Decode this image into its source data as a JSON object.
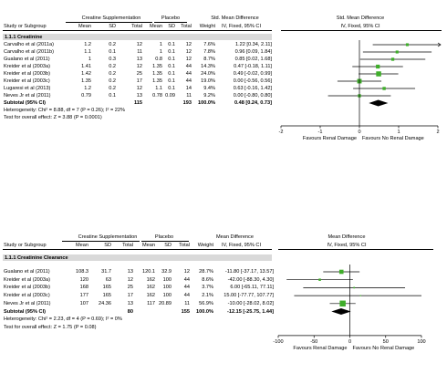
{
  "chart_data": [
    {
      "type": "forest",
      "section": "1.1.1 Creatinine",
      "headers": {
        "group1": "Creatine Supplementation",
        "group2": "Placebo",
        "effect": "Std. Mean Difference",
        "effect_sub": "IV, Fixed, 95% CI",
        "plot": "Std. Mean Difference",
        "plot_sub": "IV, Fixed, 95% CI",
        "study": "Study or Subgroup",
        "mean": "Mean",
        "sd": "SD",
        "total": "Total",
        "weight": "Weight"
      },
      "rows": [
        {
          "study": "Carvalho et al (2011a)",
          "m1": "1.2",
          "sd1": "0.2",
          "n1": "12",
          "m2": "1",
          "sd2": "0.1",
          "n2": "12",
          "weight": "7.6%",
          "ci_text": "1.22 [0.34, 2.11]",
          "est": 1.22,
          "lo": 0.34,
          "hi": 2.11,
          "arrow": true
        },
        {
          "study": "Carvalho et al (2011b)",
          "m1": "1.1",
          "sd1": "0.1",
          "n1": "11",
          "m2": "1",
          "sd2": "0.1",
          "n2": "12",
          "weight": "7.8%",
          "ci_text": "0.96 [0.09, 1.84]",
          "est": 0.96,
          "lo": 0.09,
          "hi": 1.84
        },
        {
          "study": "Gualano et al (2011)",
          "m1": "1",
          "sd1": "0.3",
          "n1": "13",
          "m2": "0.8",
          "sd2": "0.1",
          "n2": "12",
          "weight": "8.7%",
          "ci_text": "0.85 [0.02, 1.68]",
          "est": 0.85,
          "lo": 0.02,
          "hi": 1.68
        },
        {
          "study": "Kreider et al (2003a)",
          "m1": "1.41",
          "sd1": "0.2",
          "n1": "12",
          "m2": "1.35",
          "sd2": "0.1",
          "n2": "44",
          "weight": "14.3%",
          "ci_text": "0.47 [-0.18, 1.11]",
          "est": 0.47,
          "lo": -0.18,
          "hi": 1.11
        },
        {
          "study": "Kreider et al (2003b)",
          "m1": "1.42",
          "sd1": "0.2",
          "n1": "25",
          "m2": "1.35",
          "sd2": "0.1",
          "n2": "44",
          "weight": "24.0%",
          "ci_text": "0.49 [-0.02, 0.99]",
          "est": 0.49,
          "lo": -0.02,
          "hi": 0.99
        },
        {
          "study": "Kreider et al (2003c)",
          "m1": "1.35",
          "sd1": "0.2",
          "n1": "17",
          "m2": "1.35",
          "sd2": "0.1",
          "n2": "44",
          "weight": "19.0%",
          "ci_text": "0.00 [-0.56, 0.56]",
          "est": 0.0,
          "lo": -0.56,
          "hi": 0.56
        },
        {
          "study": "Lugaresi et al (2013)",
          "m1": "1.2",
          "sd1": "0.2",
          "n1": "12",
          "m2": "1.1",
          "sd2": "0.1",
          "n2": "14",
          "weight": "9.4%",
          "ci_text": "0.63 [-0.16, 1.42]",
          "est": 0.63,
          "lo": -0.16,
          "hi": 1.42
        },
        {
          "study": "Neves Jr et al (2011)",
          "m1": "0.79",
          "sd1": "0.1",
          "n1": "13",
          "m2": "0.78",
          "sd2": "0.09",
          "n2": "11",
          "weight": "9.2%",
          "ci_text": "0.00 [-0.80, 0.80]",
          "est": 0.0,
          "lo": -0.8,
          "hi": 0.8
        }
      ],
      "subtotal": {
        "label": "Subtotal (95% CI)",
        "n1": "115",
        "n2": "193",
        "weight": "100.0%",
        "ci_text": "0.48 [0.24, 0.73]",
        "est": 0.48,
        "lo": 0.24,
        "hi": 0.73
      },
      "heterogeneity": "Heterogeneity: Chi² = 8.88, df = 7 (P = 0.26); I² = 22%",
      "overall_test": "Test for overall effect: Z = 3.88 (P = 0.0001)",
      "axis": {
        "min": -2,
        "max": 2,
        "ticks": [
          "-2",
          "-1",
          "0",
          "1",
          "2"
        ],
        "tick_values": [
          -2,
          -1,
          0,
          1,
          2
        ]
      },
      "favours_left": "Favours Renal Damage",
      "favours_right": "Favours No Renal Damage",
      "marker_color": "#3fae2a"
    },
    {
      "type": "forest",
      "section": "1.1.1 Creatinine Clearance",
      "headers": {
        "group1": "Creatine Supplementation",
        "group2": "Placebo",
        "effect": "Mean Difference",
        "effect_sub": "IV, Fixed, 95% CI",
        "plot": "Mean Difference",
        "plot_sub": "IV, Fixed, 95% CI",
        "study": "Study or Subgroup",
        "mean": "Mean",
        "sd": "SD",
        "total": "Total",
        "weight": "Weight"
      },
      "rows": [
        {
          "study": "Gualano et al (2011)",
          "m1": "108.3",
          "sd1": "31.7",
          "n1": "13",
          "m2": "120.1",
          "sd2": "32.9",
          "n2": "12",
          "weight": "28.7%",
          "ci_text": "-11.80 [-37.17, 13.57]",
          "est": -11.8,
          "lo": -37.17,
          "hi": 13.57
        },
        {
          "study": "Kreider et al (2003a)",
          "m1": "120",
          "sd1": "63",
          "n1": "12",
          "m2": "162",
          "sd2": "100",
          "n2": "44",
          "weight": "8.6%",
          "ci_text": "-42.00 [-88.30, 4.30]",
          "est": -42.0,
          "lo": -88.3,
          "hi": 4.3
        },
        {
          "study": "Kreider et al (2003b)",
          "m1": "168",
          "sd1": "165",
          "n1": "25",
          "m2": "162",
          "sd2": "100",
          "n2": "44",
          "weight": "3.7%",
          "ci_text": "6.00 [-65.11, 77.11]",
          "est": 6.0,
          "lo": -65.11,
          "hi": 77.11
        },
        {
          "study": "Kreider et al (2003c)",
          "m1": "177",
          "sd1": "165",
          "n1": "17",
          "m2": "162",
          "sd2": "100",
          "n2": "44",
          "weight": "2.1%",
          "ci_text": "15.00 [-77.77, 107.77]",
          "est": 15.0,
          "lo": -77.77,
          "hi": 107.77
        },
        {
          "study": "Neves Jr et al (2011)",
          "m1": "107",
          "sd1": "24.36",
          "n1": "13",
          "m2": "117",
          "sd2": "20.89",
          "n2": "11",
          "weight": "56.9%",
          "ci_text": "-10.00 [-28.02, 8.02]",
          "est": -10.0,
          "lo": -28.02,
          "hi": 8.02
        }
      ],
      "subtotal": {
        "label": "Subtotal (95% CI)",
        "n1": "80",
        "n2": "155",
        "weight": "100.0%",
        "ci_text": "-12.15 [-25.75, 1.44]",
        "est": -12.15,
        "lo": -25.75,
        "hi": 1.44
      },
      "heterogeneity": "Heterogeneity: Chi² = 2.23, df = 4 (P = 0.69); I² = 0%",
      "overall_test": "Test for overall effect: Z = 1.75 (P = 0.08)",
      "axis": {
        "min": -100,
        "max": 100,
        "ticks": [
          "-100",
          "-50",
          "0",
          "50",
          "100"
        ],
        "tick_values": [
          -100,
          -50,
          0,
          50,
          100
        ]
      },
      "favours_left": "Favours Renal Damage",
      "favours_right": "Favours No Renal Damage",
      "marker_color": "#3fae2a"
    }
  ]
}
